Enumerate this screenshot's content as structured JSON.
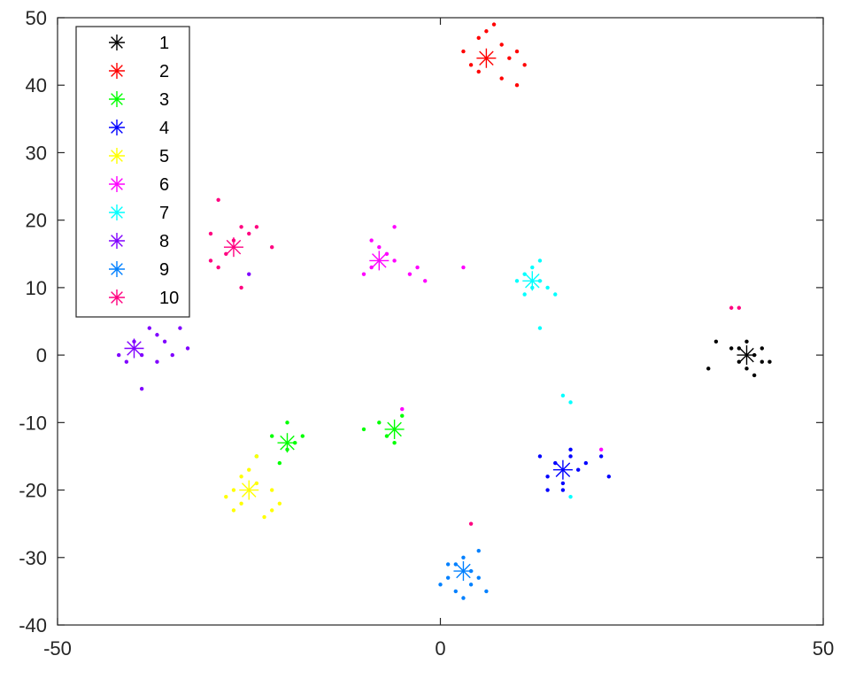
{
  "chart_data": {
    "type": "scatter",
    "title": "",
    "xlabel": "",
    "ylabel": "",
    "xlim": [
      -50,
      50
    ],
    "ylim": [
      -40,
      50
    ],
    "xticks": [
      -50,
      0,
      50
    ],
    "yticks": [
      -40,
      -30,
      -20,
      -10,
      0,
      10,
      20,
      30,
      40,
      50
    ],
    "grid": false,
    "legend_position": "top-left",
    "marker": "asterisk",
    "series": [
      {
        "name": "1",
        "color": "#000000",
        "centers": [
          [
            40,
            0
          ]
        ],
        "points": [
          [
            36,
            2
          ],
          [
            38,
            1
          ],
          [
            39,
            -1
          ],
          [
            40,
            -2
          ],
          [
            41,
            0
          ],
          [
            42,
            1
          ],
          [
            43,
            -1
          ],
          [
            40,
            2
          ],
          [
            41,
            -3
          ],
          [
            39,
            1
          ],
          [
            42,
            -1
          ],
          [
            35,
            -2
          ]
        ]
      },
      {
        "name": "2",
        "color": "#ff0000",
        "centers": [
          [
            6,
            44
          ]
        ],
        "points": [
          [
            3,
            45
          ],
          [
            4,
            43
          ],
          [
            5,
            47
          ],
          [
            6,
            48
          ],
          [
            7,
            49
          ],
          [
            8,
            46
          ],
          [
            9,
            44
          ],
          [
            10,
            45
          ],
          [
            11,
            43
          ],
          [
            8,
            41
          ],
          [
            10,
            40
          ],
          [
            5,
            42
          ]
        ]
      },
      {
        "name": "3",
        "color": "#00ff00",
        "centers": [
          [
            -20,
            -13
          ],
          [
            -6,
            -11
          ]
        ],
        "points": [
          [
            -24,
            -15
          ],
          [
            -22,
            -12
          ],
          [
            -21,
            -16
          ],
          [
            -20,
            -14
          ],
          [
            -19,
            -13
          ],
          [
            -18,
            -12
          ],
          [
            -20,
            -10
          ],
          [
            -10,
            -11
          ],
          [
            -8,
            -10
          ],
          [
            -7,
            -12
          ],
          [
            -6,
            -13
          ],
          [
            -5,
            -9
          ]
        ]
      },
      {
        "name": "4",
        "color": "#0000ff",
        "centers": [
          [
            16,
            -17
          ]
        ],
        "points": [
          [
            13,
            -15
          ],
          [
            14,
            -18
          ],
          [
            15,
            -16
          ],
          [
            16,
            -19
          ],
          [
            17,
            -15
          ],
          [
            16,
            -20
          ],
          [
            18,
            -17
          ],
          [
            19,
            -16
          ],
          [
            21,
            -15
          ],
          [
            22,
            -18
          ],
          [
            14,
            -20
          ],
          [
            17,
            -14
          ]
        ]
      },
      {
        "name": "5",
        "color": "#ffff00",
        "centers": [
          [
            -25,
            -20
          ]
        ],
        "points": [
          [
            -28,
            -21
          ],
          [
            -27,
            -20
          ],
          [
            -26,
            -22
          ],
          [
            -25,
            -17
          ],
          [
            -24,
            -19
          ],
          [
            -23,
            -24
          ],
          [
            -22,
            -23
          ],
          [
            -21,
            -22
          ],
          [
            -24,
            -15
          ],
          [
            -26,
            -18
          ],
          [
            -22,
            -20
          ],
          [
            -27,
            -23
          ]
        ]
      },
      {
        "name": "6",
        "color": "#ff00ff",
        "centers": [
          [
            -8,
            14
          ]
        ],
        "points": [
          [
            -10,
            12
          ],
          [
            -9,
            17
          ],
          [
            -8,
            16
          ],
          [
            -7,
            15
          ],
          [
            -9,
            13
          ],
          [
            -6,
            14
          ],
          [
            -4,
            12
          ],
          [
            -3,
            13
          ],
          [
            -2,
            11
          ],
          [
            -6,
            19
          ],
          [
            3,
            13
          ],
          [
            21,
            -14
          ],
          [
            -5,
            -8
          ]
        ]
      },
      {
        "name": "7",
        "color": "#00ffff",
        "centers": [
          [
            12,
            11
          ]
        ],
        "points": [
          [
            11,
            12
          ],
          [
            12,
            10
          ],
          [
            13,
            11
          ],
          [
            11,
            9
          ],
          [
            12,
            13
          ],
          [
            14,
            10
          ],
          [
            13,
            14
          ],
          [
            10,
            11
          ],
          [
            15,
            9
          ],
          [
            13,
            4
          ],
          [
            16,
            -6
          ],
          [
            17,
            -7
          ],
          [
            17,
            -21
          ]
        ]
      },
      {
        "name": "8",
        "color": "#8000ff",
        "centers": [
          [
            -40,
            1
          ]
        ],
        "points": [
          [
            -42,
            0
          ],
          [
            -41,
            -1
          ],
          [
            -40,
            2
          ],
          [
            -39,
            0
          ],
          [
            -38,
            4
          ],
          [
            -37,
            3
          ],
          [
            -36,
            2
          ],
          [
            -35,
            0
          ],
          [
            -34,
            4
          ],
          [
            -37,
            -1
          ],
          [
            -33,
            1
          ],
          [
            -39,
            -5
          ],
          [
            -25,
            12
          ]
        ]
      },
      {
        "name": "9",
        "color": "#0080ff",
        "centers": [
          [
            3,
            -32
          ]
        ],
        "points": [
          [
            0,
            -34
          ],
          [
            1,
            -33
          ],
          [
            2,
            -31
          ],
          [
            3,
            -30
          ],
          [
            4,
            -32
          ],
          [
            5,
            -33
          ],
          [
            6,
            -35
          ],
          [
            2,
            -35
          ],
          [
            3,
            -36
          ],
          [
            4,
            -34
          ],
          [
            1,
            -31
          ],
          [
            5,
            -29
          ]
        ]
      },
      {
        "name": "10",
        "color": "#ff0080",
        "centers": [
          [
            -27,
            16
          ]
        ],
        "points": [
          [
            -30,
            14
          ],
          [
            -29,
            13
          ],
          [
            -28,
            15
          ],
          [
            -27,
            17
          ],
          [
            -26,
            19
          ],
          [
            -25,
            18
          ],
          [
            -24,
            19
          ],
          [
            -29,
            23
          ],
          [
            -26,
            10
          ],
          [
            -22,
            16
          ],
          [
            -30,
            18
          ],
          [
            38,
            7
          ],
          [
            39,
            7
          ],
          [
            4,
            -25
          ]
        ]
      }
    ]
  }
}
